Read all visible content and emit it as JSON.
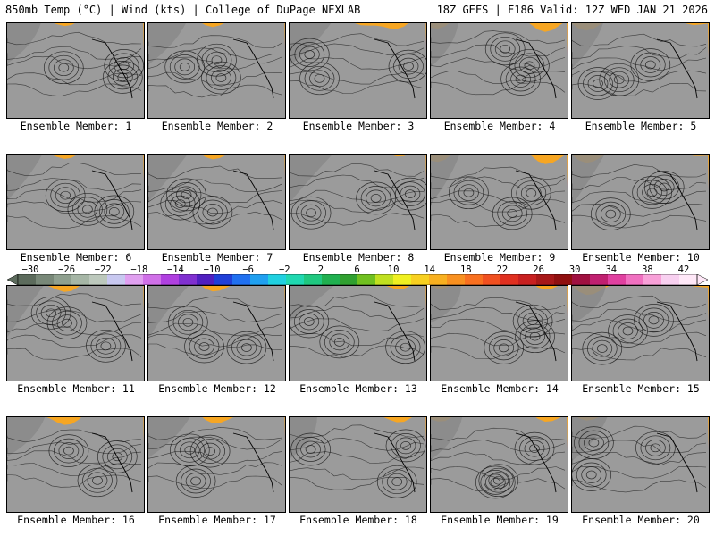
{
  "header": {
    "left": "850mb Temp (°C) | Wind (kts) | College of DuPage NEXLAB",
    "right": "18Z GEFS | F186 Valid: 12Z WED JAN 21 2026"
  },
  "members": [
    "Ensemble Member: 1",
    "Ensemble Member: 2",
    "Ensemble Member: 3",
    "Ensemble Member: 4",
    "Ensemble Member: 5",
    "Ensemble Member: 6",
    "Ensemble Member: 7",
    "Ensemble Member: 8",
    "Ensemble Member: 9",
    "Ensemble Member: 10",
    "Ensemble Member: 11",
    "Ensemble Member: 12",
    "Ensemble Member: 13",
    "Ensemble Member: 14",
    "Ensemble Member: 15",
    "Ensemble Member: 16",
    "Ensemble Member: 17",
    "Ensemble Member: 18",
    "Ensemble Member: 19",
    "Ensemble Member: 20"
  ],
  "colorbar": {
    "ticks": [
      "−30",
      "−26",
      "−22",
      "−18",
      "−14",
      "−10",
      "−6",
      "−2",
      "2",
      "6",
      "10",
      "14",
      "18",
      "22",
      "26",
      "30",
      "34",
      "38",
      "42"
    ],
    "colors": [
      "#5c6b5c",
      "#788878",
      "#8fa08f",
      "#a6b6a6",
      "#bcc8bc",
      "#c8c8f0",
      "#e0a0f0",
      "#d070e8",
      "#b040e0",
      "#8030d0",
      "#5020c0",
      "#2040d8",
      "#2070f0",
      "#20a0f0",
      "#20d0e0",
      "#20d8b0",
      "#20c880",
      "#20b050",
      "#30a030",
      "#70c020",
      "#c0e020",
      "#f0f020",
      "#f8d020",
      "#f8b020",
      "#f89020",
      "#f87020",
      "#f05020",
      "#e03020",
      "#c82020",
      "#a81818",
      "#901010",
      "#a01040",
      "#c02070",
      "#e040a0",
      "#f070c0",
      "#f8a0d8",
      "#f8d0f0",
      "#ffe8f8"
    ]
  }
}
